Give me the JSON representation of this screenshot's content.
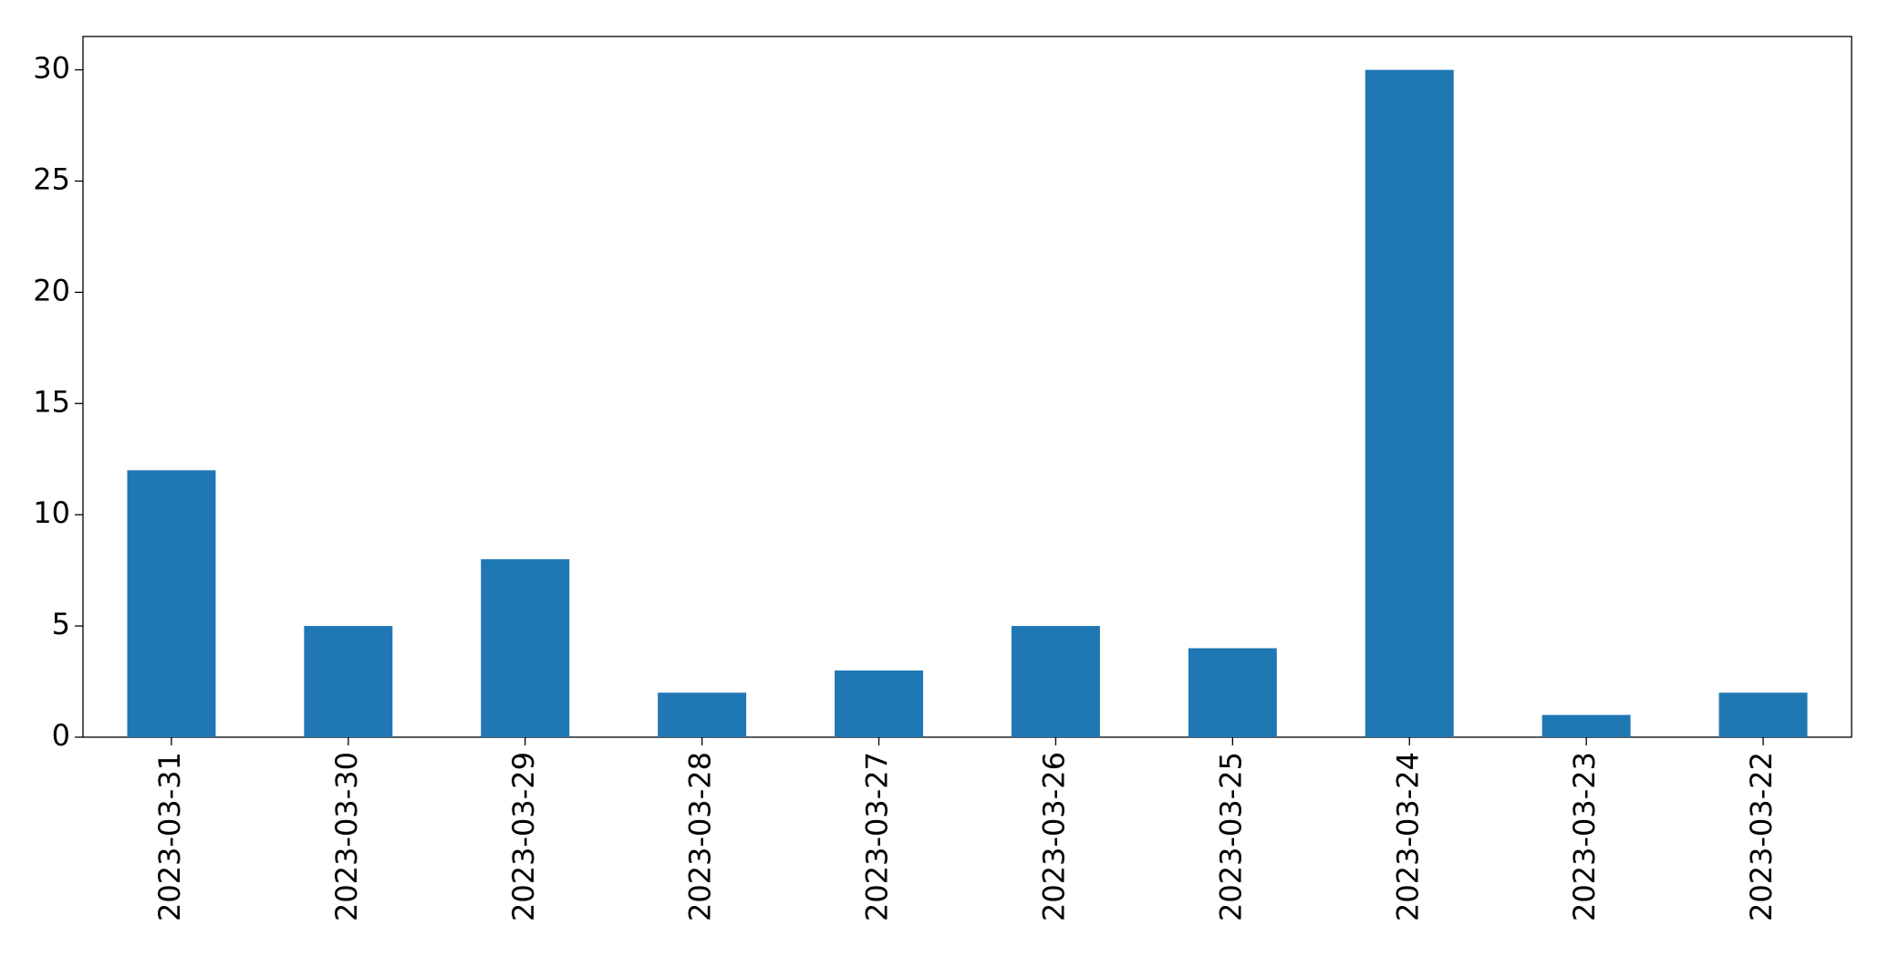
{
  "chart_data": {
    "type": "bar",
    "categories": [
      "2023-03-31",
      "2023-03-30",
      "2023-03-29",
      "2023-03-28",
      "2023-03-27",
      "2023-03-26",
      "2023-03-25",
      "2023-03-24",
      "2023-03-23",
      "2023-03-22"
    ],
    "values": [
      12,
      5,
      8,
      2,
      3,
      5,
      4,
      30,
      1,
      2
    ],
    "color": "#1f77b4",
    "ylim": [
      0,
      31.5
    ],
    "yticks": [
      0,
      5,
      10,
      15,
      20,
      25,
      30
    ],
    "grid": false
  }
}
